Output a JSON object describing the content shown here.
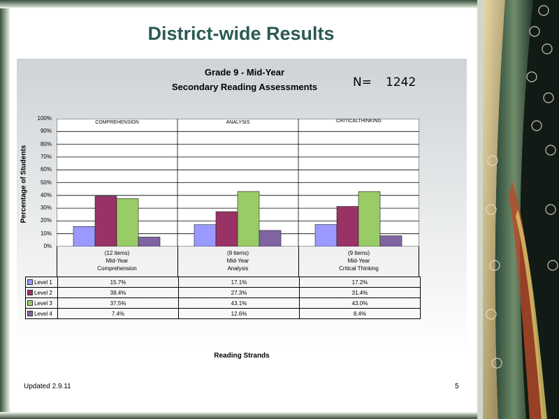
{
  "slide": {
    "title": "District-wide Results",
    "updated": "Updated  2.9.11",
    "page_number": "5"
  },
  "n": {
    "label": "N=",
    "value": "1242"
  },
  "chart_data": {
    "type": "bar",
    "title": "Grade 9 - Mid-Year",
    "subtitle": "Secondary Reading Assessments",
    "ylabel": "Percentage of Students",
    "xlabel": "Reading Strands",
    "ylim": [
      0,
      100
    ],
    "yticks": [
      "0%",
      "10%",
      "20%",
      "30%",
      "40%",
      "50%",
      "60%",
      "70%",
      "80%",
      "90%",
      "100%"
    ],
    "grid": true,
    "strand_labels": [
      "COMPREHENSION",
      "ANALYSIS",
      "CRITICALTHINKING"
    ],
    "categories": [
      [
        "(12 items)",
        "Mid-Year",
        "Comprehension"
      ],
      [
        "(9 items)",
        "Mid-Year",
        "Analysis"
      ],
      [
        "(9 items)",
        "Mid-Year",
        "Critical Thinking"
      ]
    ],
    "series": [
      {
        "name": "Level 1",
        "color": "#9999ff",
        "values": [
          15.7,
          17.1,
          17.2
        ],
        "labels": [
          "15.7%",
          "17.1%",
          "17.2%"
        ]
      },
      {
        "name": "Level 2",
        "color": "#993366",
        "values": [
          39.4,
          27.3,
          31.4
        ],
        "labels": [
          "39.4%",
          "27.3%",
          "31.4%"
        ]
      },
      {
        "name": "Level 3",
        "color": "#99cc66",
        "values": [
          37.5,
          43.1,
          43.0
        ],
        "labels": [
          "37.5%",
          "43.1%",
          "43.0%"
        ]
      },
      {
        "name": "Level 4",
        "color": "#8064a2",
        "values": [
          7.4,
          12.6,
          8.4
        ],
        "labels": [
          "7.4%",
          "12.6%",
          "8.4%"
        ]
      }
    ]
  }
}
